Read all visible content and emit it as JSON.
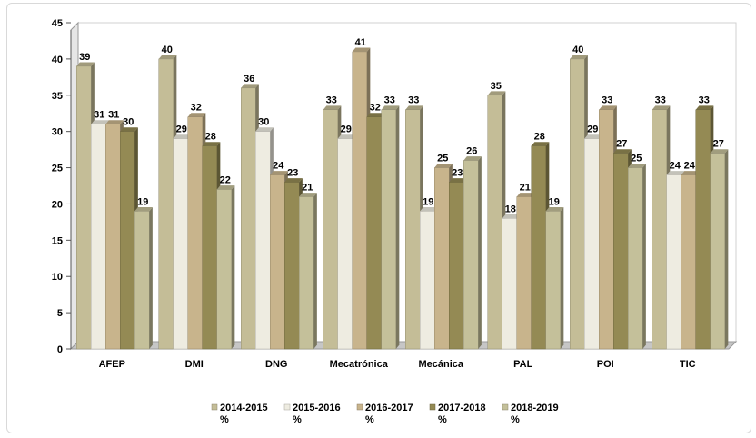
{
  "chart_data": {
    "type": "bar",
    "categories": [
      "AFEP",
      "DMI",
      "DNG",
      "Mecatrónica",
      "Mecánica",
      "PAL",
      "POI",
      "TIC"
    ],
    "series": [
      {
        "name": "2014-2015 %",
        "label_main": "2014-2015",
        "label_unit": "%",
        "color": "#c4bd97",
        "values": [
          39,
          40,
          36,
          33,
          33,
          35,
          40,
          33
        ]
      },
      {
        "name": "2015-2016 %",
        "label_main": "2015-2016",
        "label_unit": "%",
        "color": "#eeece1",
        "values": [
          31,
          29,
          30,
          29,
          19,
          18,
          29,
          24
        ]
      },
      {
        "name": "2016-2017 %",
        "label_main": "2016-2017",
        "label_unit": "%",
        "color": "#c8b48c",
        "values": [
          31,
          32,
          24,
          41,
          25,
          21,
          33,
          24
        ]
      },
      {
        "name": "2017-2018 %",
        "label_main": "2017-2018",
        "label_unit": "%",
        "color": "#948a54",
        "values": [
          30,
          28,
          23,
          32,
          23,
          28,
          27,
          33
        ]
      },
      {
        "name": "2018-2019 %",
        "label_main": "2018-2019",
        "label_unit": "%",
        "color": "#c4c09a",
        "values": [
          19,
          22,
          21,
          33,
          26,
          19,
          25,
          27
        ]
      }
    ],
    "ylim": [
      0,
      45
    ],
    "yticks": [
      0,
      5,
      10,
      15,
      20,
      25,
      30,
      35,
      40,
      45
    ],
    "grid": false,
    "legend_position": "bottom",
    "title": "",
    "xlabel": "",
    "ylabel": ""
  }
}
